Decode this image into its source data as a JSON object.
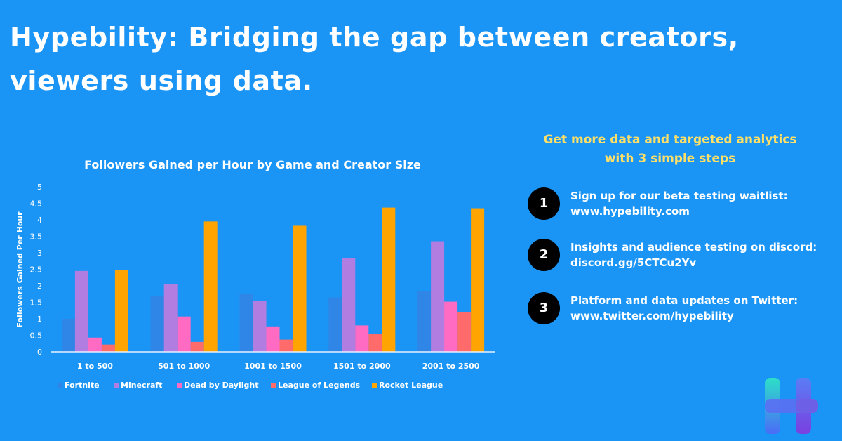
{
  "headline": {
    "line1": "Hypebility: Bridging the gap between creators,",
    "line2": "viewers using data."
  },
  "cta": {
    "title_line1": "Get more data and targeted analytics",
    "title_line2": "with 3 simple steps"
  },
  "steps": [
    {
      "number": "1",
      "line1": "Sign up for our beta testing waitlist:",
      "line2": "www.hypebility.com"
    },
    {
      "number": "2",
      "line1": "Insights and audience testing on discord:",
      "line2": "discord.gg/5CTCu2Yv"
    },
    {
      "number": "3",
      "line1": "Platform and data updates  on Twitter:",
      "line2": "www.twitter.com/hypebility"
    }
  ],
  "colors": {
    "background": "#1b95f5",
    "accent_yellow": "#ffe066"
  },
  "chart_data": {
    "type": "bar",
    "title": "Followers Gained per Hour by Game and Creator Size",
    "xlabel": "",
    "ylabel": "Followers Gained Per Hour",
    "ylim": [
      0,
      5
    ],
    "yticks": [
      "0",
      "0.5",
      "1",
      "1.5",
      "2",
      "2.5",
      "3",
      "3.5",
      "4",
      "4.5",
      "5"
    ],
    "grid": false,
    "legend_position": "bottom",
    "categories": [
      "1 to 500",
      "501 to 1000",
      "1001 to 1500",
      "1501 to 2000",
      "2001 to 2500"
    ],
    "series": [
      {
        "name": "Fortnite",
        "color": "#2f86e6",
        "values": [
          1.0,
          1.7,
          1.75,
          1.65,
          1.85
        ]
      },
      {
        "name": "Minecraft",
        "color": "#b27de0",
        "values": [
          2.45,
          2.05,
          1.55,
          2.85,
          3.35
        ]
      },
      {
        "name": "Dead by Daylight",
        "color": "#ff6bc2",
        "values": [
          0.43,
          1.07,
          0.77,
          0.8,
          1.52
        ]
      },
      {
        "name": "League of Legends",
        "color": "#ff6b6b",
        "values": [
          0.22,
          0.3,
          0.37,
          0.55,
          1.2
        ]
      },
      {
        "name": "Rocket League",
        "color": "#ffa400",
        "values": [
          2.48,
          3.95,
          3.82,
          4.37,
          4.35
        ]
      }
    ]
  }
}
